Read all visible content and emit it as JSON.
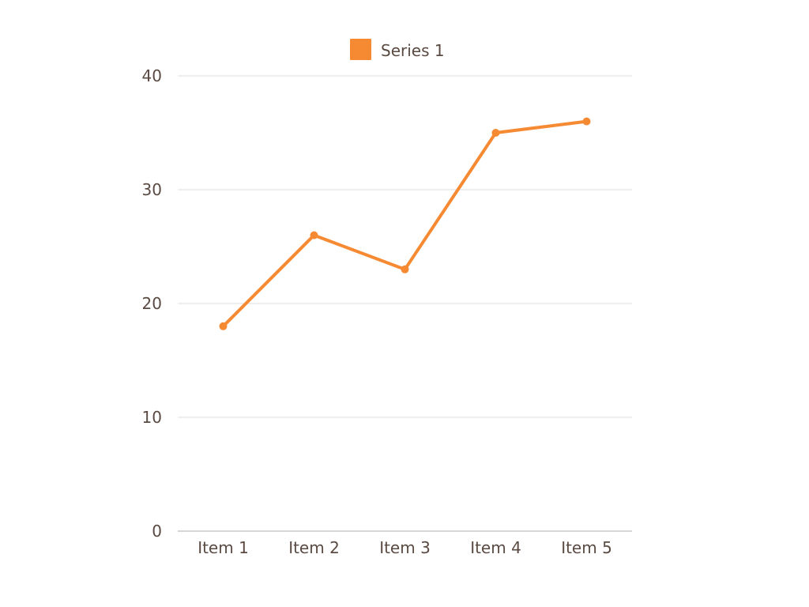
{
  "chart_data": {
    "type": "line",
    "categories": [
      "Item 1",
      "Item 2",
      "Item 3",
      "Item 4",
      "Item 5"
    ],
    "series": [
      {
        "name": "Series 1",
        "values": [
          18,
          26,
          23,
          35,
          36
        ],
        "color": "#f68a33"
      }
    ],
    "ylim": [
      0,
      40
    ],
    "yticks": [
      "0",
      "10",
      "20",
      "30",
      "40"
    ],
    "grid": true,
    "legend": "top-center"
  }
}
